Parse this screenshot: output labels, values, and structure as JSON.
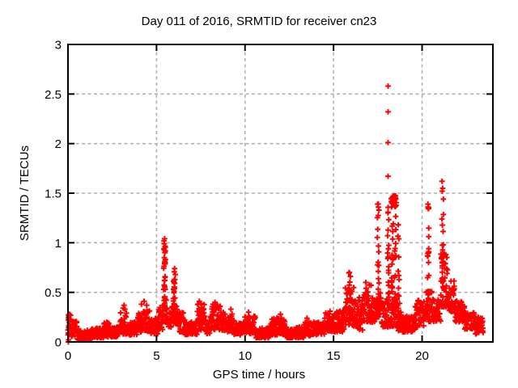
{
  "window": {
    "background": "#ffffff"
  },
  "chart_data": {
    "type": "scatter",
    "title": "Day 011 of 2016, SRMTID for receiver cn23",
    "xlabel": "GPS time / hours",
    "ylabel": "SRMTID / TECUs",
    "xlim": [
      0,
      24
    ],
    "ylim": [
      0,
      3
    ],
    "xticks": [
      0,
      5,
      10,
      15,
      20
    ],
    "yticks": [
      0,
      0.5,
      1,
      1.5,
      2,
      2.5,
      3
    ],
    "grid": "dashed at major ticks, mirrored inward ticks on all borders",
    "legend": "none",
    "marker": "plus",
    "marker_color": "#ff0000",
    "grid_color": "#b0b0b0",
    "axis_color": "#000000",
    "schema": {
      "band_segments": "[t_start_h, t_end_h, y_min_TECU, y_max_TECU, n_points] dense baseline cloud envelope",
      "spike_columns": "[t_h, y_min_TECU, y_max_TECU, n_points] vertical streaks of points",
      "outlier_points": "[t_h, y_TECU] individually resolvable points"
    },
    "band_segments": [
      [
        0.0,
        0.15,
        0.08,
        0.28,
        14
      ],
      [
        0.15,
        0.5,
        0.05,
        0.22,
        30
      ],
      [
        0.5,
        1.3,
        0.02,
        0.12,
        75
      ],
      [
        1.3,
        2.0,
        0.04,
        0.14,
        62
      ],
      [
        2.0,
        2.35,
        0.05,
        0.2,
        30
      ],
      [
        2.35,
        2.9,
        0.05,
        0.16,
        50
      ],
      [
        2.9,
        3.35,
        0.08,
        0.3,
        40
      ],
      [
        3.35,
        3.9,
        0.07,
        0.2,
        48
      ],
      [
        3.9,
        4.6,
        0.1,
        0.32,
        62
      ],
      [
        4.6,
        5.1,
        0.08,
        0.24,
        44
      ],
      [
        5.1,
        5.35,
        0.12,
        0.35,
        22
      ],
      [
        5.35,
        5.62,
        0.2,
        0.45,
        24
      ],
      [
        5.62,
        5.88,
        0.15,
        0.3,
        22
      ],
      [
        5.88,
        6.18,
        0.18,
        0.42,
        26
      ],
      [
        6.18,
        6.6,
        0.1,
        0.3,
        36
      ],
      [
        6.6,
        7.3,
        0.07,
        0.2,
        60
      ],
      [
        7.3,
        7.75,
        0.12,
        0.38,
        40
      ],
      [
        7.75,
        8.1,
        0.08,
        0.26,
        30
      ],
      [
        8.1,
        8.6,
        0.12,
        0.38,
        44
      ],
      [
        8.6,
        9.35,
        0.1,
        0.3,
        64
      ],
      [
        9.35,
        9.95,
        0.07,
        0.22,
        52
      ],
      [
        9.95,
        10.6,
        0.08,
        0.26,
        56
      ],
      [
        10.6,
        11.4,
        0.04,
        0.14,
        70
      ],
      [
        11.4,
        12.3,
        0.07,
        0.25,
        78
      ],
      [
        12.3,
        13.3,
        0.04,
        0.15,
        86
      ],
      [
        13.3,
        13.75,
        0.06,
        0.22,
        40
      ],
      [
        13.75,
        14.5,
        0.07,
        0.2,
        64
      ],
      [
        14.5,
        15.15,
        0.1,
        0.3,
        56
      ],
      [
        15.15,
        15.65,
        0.1,
        0.32,
        44
      ],
      [
        15.65,
        16.2,
        0.15,
        0.55,
        48
      ],
      [
        16.2,
        16.65,
        0.12,
        0.45,
        40
      ],
      [
        16.65,
        17.15,
        0.2,
        0.58,
        44
      ],
      [
        17.15,
        17.45,
        0.18,
        0.45,
        26
      ],
      [
        17.45,
        17.7,
        0.25,
        0.5,
        22
      ],
      [
        17.7,
        18.0,
        0.15,
        0.4,
        26
      ],
      [
        18.0,
        18.6,
        0.15,
        0.45,
        50
      ],
      [
        18.25,
        18.55,
        1.36,
        1.48,
        26
      ],
      [
        18.6,
        18.85,
        0.1,
        0.3,
        20
      ],
      [
        18.85,
        19.6,
        0.1,
        0.26,
        66
      ],
      [
        19.6,
        20.1,
        0.15,
        0.42,
        44
      ],
      [
        20.1,
        20.6,
        0.2,
        0.52,
        44
      ],
      [
        20.6,
        21.05,
        0.2,
        0.45,
        40
      ],
      [
        21.05,
        21.45,
        0.35,
        0.9,
        42
      ],
      [
        21.45,
        21.85,
        0.3,
        0.62,
        36
      ],
      [
        21.85,
        22.4,
        0.2,
        0.42,
        48
      ],
      [
        22.4,
        23.0,
        0.13,
        0.3,
        52
      ],
      [
        23.0,
        23.45,
        0.08,
        0.25,
        40
      ]
    ],
    "spike_columns": [
      [
        5.45,
        0.3,
        1.04,
        26
      ],
      [
        6.0,
        0.35,
        0.74,
        16
      ],
      [
        15.9,
        0.3,
        0.7,
        14
      ],
      [
        17.52,
        0.35,
        1.4,
        20
      ],
      [
        18.1,
        0.3,
        1.42,
        22
      ],
      [
        18.32,
        0.3,
        1.4,
        16
      ],
      [
        18.48,
        0.25,
        1.38,
        14
      ],
      [
        18.68,
        0.2,
        1.3,
        15
      ],
      [
        20.35,
        0.3,
        1.39,
        18
      ],
      [
        21.17,
        0.55,
        1.3,
        16
      ]
    ],
    "outlier_points": [
      [
        18.08,
        2.58
      ],
      [
        18.08,
        2.32
      ],
      [
        18.08,
        2.01
      ],
      [
        18.08,
        1.67
      ],
      [
        21.13,
        1.62
      ],
      [
        21.16,
        1.55
      ],
      [
        21.14,
        1.52
      ],
      [
        21.2,
        1.44
      ],
      [
        17.49,
        1.39
      ],
      [
        17.53,
        1.36
      ],
      [
        20.33,
        1.39
      ],
      [
        20.37,
        1.35
      ],
      [
        5.42,
        1.02
      ],
      [
        5.46,
        1.04
      ],
      [
        5.44,
        0.99
      ],
      [
        5.48,
        0.96
      ],
      [
        5.43,
        0.93
      ],
      [
        5.47,
        0.9
      ],
      [
        6.02,
        0.74
      ],
      [
        6.06,
        0.68
      ],
      [
        6.04,
        0.63
      ],
      [
        15.9,
        0.7
      ],
      [
        15.95,
        0.66
      ],
      [
        16.82,
        0.6
      ],
      [
        3.12,
        0.34
      ],
      [
        3.17,
        0.37
      ],
      [
        3.22,
        0.33
      ],
      [
        4.15,
        0.38
      ],
      [
        4.3,
        0.41
      ],
      [
        4.45,
        0.37
      ],
      [
        7.42,
        0.41
      ],
      [
        7.5,
        0.39
      ],
      [
        8.3,
        0.4
      ],
      [
        8.45,
        0.37
      ],
      [
        9.2,
        0.33
      ],
      [
        10.2,
        0.3
      ],
      [
        12.0,
        0.28
      ],
      [
        13.5,
        0.24
      ],
      [
        14.8,
        0.31
      ],
      [
        0.02,
        0.0
      ],
      [
        0.03,
        0.02
      ],
      [
        0.0,
        0.07
      ],
      [
        0.02,
        0.09
      ],
      [
        0.05,
        0.24
      ],
      [
        0.03,
        0.27
      ],
      [
        0.08,
        0.28
      ],
      [
        0.06,
        0.2
      ],
      [
        0.1,
        0.22
      ],
      [
        0.04,
        0.16
      ]
    ]
  }
}
